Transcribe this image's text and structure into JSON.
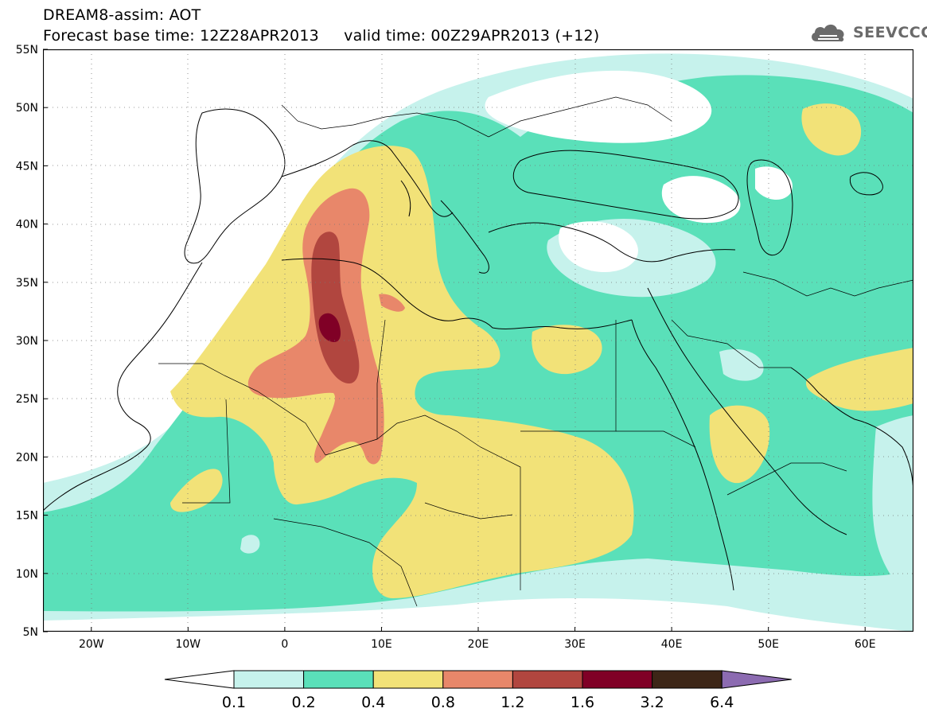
{
  "title": {
    "line1": "DREAM8-assim: AOT",
    "base_label": "Forecast base time: 12Z28APR2013",
    "valid_label": "valid time: 00Z29APR2013 (+12)"
  },
  "logo": {
    "text": "SEEVCCC",
    "icon": "cloud-icon"
  },
  "map": {
    "lon_range": [
      -25,
      65
    ],
    "lat_range": [
      5,
      55
    ],
    "lon_ticks": [
      "20W",
      "10W",
      "0",
      "10E",
      "20E",
      "30E",
      "40E",
      "50E",
      "60E"
    ],
    "lat_ticks": [
      "5N",
      "10N",
      "15N",
      "20N",
      "25N",
      "30N",
      "35N",
      "40N",
      "45N",
      "50N",
      "55N"
    ],
    "gridlines": "dotted"
  },
  "colorbar": {
    "labels": [
      "0.1",
      "0.2",
      "0.4",
      "0.8",
      "1.2",
      "1.6",
      "3.2",
      "6.4"
    ],
    "colors": [
      "#c6f2ec",
      "#5ae0b9",
      "#f2e278",
      "#e8876a",
      "#b1463f",
      "#800026",
      "#3d2617",
      "#8c6bb1"
    ],
    "under_color": "#ffffff"
  }
}
